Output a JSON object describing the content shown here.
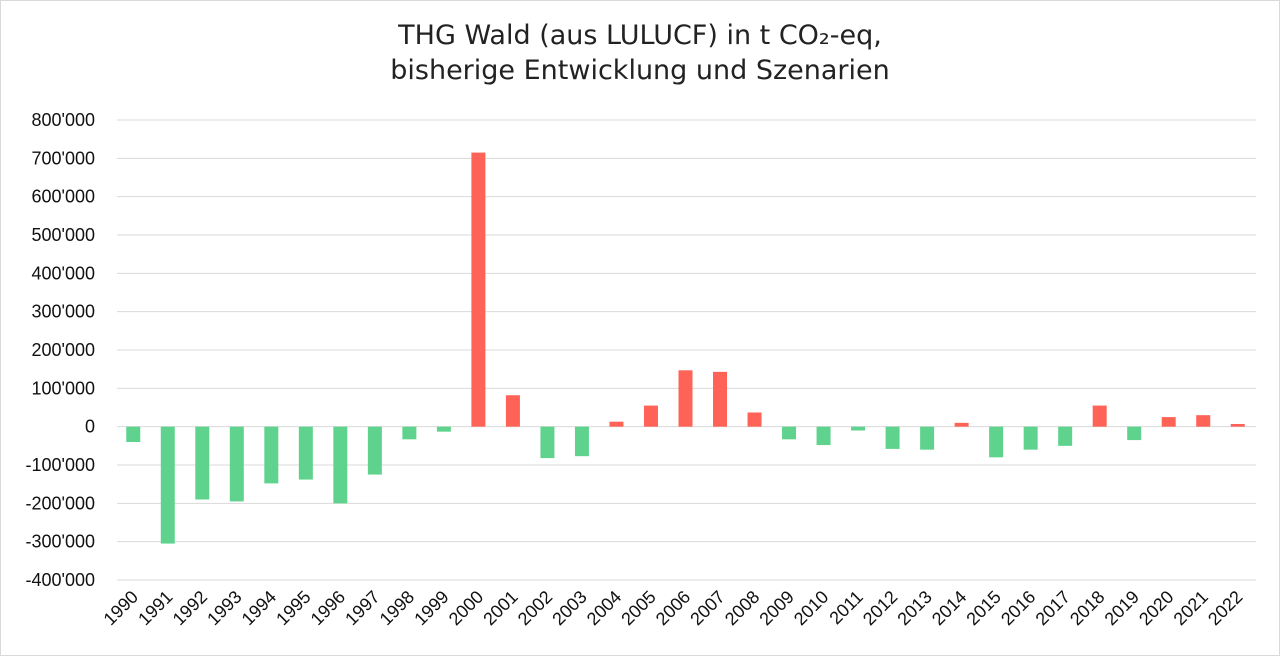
{
  "chart_data": {
    "type": "bar",
    "title_line1": "THG Wald (aus LULUCF) in t CO₂-eq,",
    "title_line2": "bisherige Entwicklung und Szenarien",
    "xlabel": "",
    "ylabel": "",
    "ylim": [
      -400000,
      800000
    ],
    "yticks": [
      800000,
      700000,
      600000,
      500000,
      400000,
      300000,
      200000,
      100000,
      0,
      -100000,
      -200000,
      -300000,
      -400000
    ],
    "ytick_labels": [
      "800'000",
      "700'000",
      "600'000",
      "500'000",
      "400'000",
      "300'000",
      "200'000",
      "100'000",
      "0",
      "-100'000",
      "-200'000",
      "-300'000",
      "-400'000"
    ],
    "grid": true,
    "categories": [
      "1990",
      "1991",
      "1992",
      "1993",
      "1994",
      "1995",
      "1996",
      "1997",
      "1998",
      "1999",
      "2000",
      "2001",
      "2002",
      "2003",
      "2004",
      "2005",
      "2006",
      "2007",
      "2008",
      "2009",
      "2010",
      "2011",
      "2012",
      "2013",
      "2014",
      "2015",
      "2016",
      "2017",
      "2018",
      "2019",
      "2020",
      "2021",
      "2022"
    ],
    "values": [
      -40000,
      -305000,
      -190000,
      -195000,
      -148000,
      -138000,
      -200000,
      -125000,
      -33000,
      -13000,
      715000,
      82000,
      -82000,
      -77000,
      13000,
      55000,
      147000,
      143000,
      37000,
      -33000,
      -48000,
      -10000,
      -58000,
      -60000,
      10000,
      -80000,
      -60000,
      -50000,
      55000,
      -35000,
      25000,
      30000,
      7000
    ],
    "colors": {
      "positive": "#ff6358",
      "negative": "#5fd38d",
      "grid": "#d9d9d9"
    }
  }
}
